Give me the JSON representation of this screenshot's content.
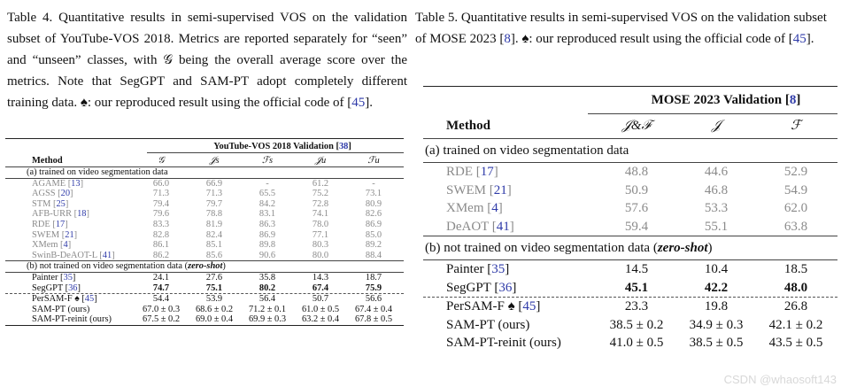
{
  "table4": {
    "caption": {
      "label": "Table 4.",
      "text_before_ref": " Quantitative results in semi-supervised VOS on the validation subset of YouTube-VOS 2018. Metrics are reported separately for “seen” and “unseen” classes, with 𝒢 being the overall average score over the metrics. Note that SegGPT and SAM-PT adopt completely different training data. ♠: our reproduced result using the official code of [",
      "ref": "45",
      "text_after_ref": "]."
    },
    "group_header": "YouTube-VOS 2018 Validation",
    "group_ref": "38",
    "columns": [
      "Method",
      "𝒢",
      "𝒥s",
      "ℱs",
      "𝒥u",
      "ℱu"
    ],
    "section_a": "(a) trained on video segmentation data",
    "section_b_prefix": "(b) not trained on video segmentation data (",
    "section_b_em": "zero-shot",
    "section_b_suffix": ")",
    "rows_a": [
      {
        "name": "AGAME",
        "ref": "13",
        "values": [
          "66.0",
          "66.9",
          "-",
          "61.2",
          "-"
        ]
      },
      {
        "name": "AGSS",
        "ref": "20",
        "values": [
          "71.3",
          "71.3",
          "65.5",
          "75.2",
          "73.1"
        ]
      },
      {
        "name": "STM",
        "ref": "25",
        "values": [
          "79.4",
          "79.7",
          "84.2",
          "72.8",
          "80.9"
        ]
      },
      {
        "name": "AFB-URR",
        "ref": "18",
        "values": [
          "79.6",
          "78.8",
          "83.1",
          "74.1",
          "82.6"
        ]
      },
      {
        "name": "RDE",
        "ref": "17",
        "values": [
          "83.3",
          "81.9",
          "86.3",
          "78.0",
          "86.9"
        ]
      },
      {
        "name": "SWEM",
        "ref": "21",
        "values": [
          "82.8",
          "82.4",
          "86.9",
          "77.1",
          "85.0"
        ]
      },
      {
        "name": "XMem",
        "ref": "4",
        "values": [
          "86.1",
          "85.1",
          "89.8",
          "80.3",
          "89.2"
        ]
      },
      {
        "name": "SwinB-DeAOT-L",
        "ref": "41",
        "values": [
          "86.2",
          "85.6",
          "90.6",
          "80.0",
          "88.4"
        ]
      }
    ],
    "rows_b": [
      {
        "name": "Painter",
        "ref": "35",
        "values": [
          "24.1",
          "27.6",
          "35.8",
          "14.3",
          "18.7"
        ],
        "bold": false
      },
      {
        "name": "SegGPT",
        "ref": "36",
        "values": [
          "74.7",
          "75.1",
          "80.2",
          "67.4",
          "75.9"
        ],
        "bold": true
      }
    ],
    "rows_c": [
      {
        "name": "PerSAM-F ♠",
        "ref": "45",
        "values": [
          "54.4",
          "53.9",
          "56.4",
          "50.7",
          "56.6"
        ]
      },
      {
        "name": "SAM-PT (ours)",
        "ref": "",
        "values": [
          "67.0 ± 0.3",
          "68.6 ± 0.2",
          "71.2 ± 0.1",
          "61.0 ± 0.5",
          "67.4 ± 0.4"
        ]
      },
      {
        "name": "SAM-PT-reinit (ours)",
        "ref": "",
        "values": [
          "67.5 ± 0.2",
          "69.0 ± 0.4",
          "69.9 ± 0.3",
          "63.2 ± 0.4",
          "67.8 ± 0.5"
        ]
      }
    ]
  },
  "table5": {
    "caption": {
      "label": "Table 5.",
      "text_before_ref": " Quantitative results in semi-supervised VOS on the validation subset of MOSE 2023 [",
      "ref1": "8",
      "text_mid": "]. ♠: our reproduced result using the official code of [",
      "ref2": "45",
      "text_after_ref": "]."
    },
    "group_header": "MOSE 2023 Validation",
    "group_ref": "8",
    "columns": [
      "Method",
      "𝒥&ℱ",
      "𝒥",
      "ℱ"
    ],
    "section_a": "(a) trained on video segmentation data",
    "section_b_prefix": "(b) not trained on video segmentation data (",
    "section_b_em": "zero-shot",
    "section_b_suffix": ")",
    "rows_a": [
      {
        "name": "RDE",
        "ref": "17",
        "values": [
          "48.8",
          "44.6",
          "52.9"
        ]
      },
      {
        "name": "SWEM",
        "ref": "21",
        "values": [
          "50.9",
          "46.8",
          "54.9"
        ]
      },
      {
        "name": "XMem",
        "ref": "4",
        "values": [
          "57.6",
          "53.3",
          "62.0"
        ]
      },
      {
        "name": "DeAOT",
        "ref": "41",
        "values": [
          "59.4",
          "55.1",
          "63.8"
        ]
      }
    ],
    "rows_b": [
      {
        "name": "Painter",
        "ref": "35",
        "values": [
          "14.5",
          "10.4",
          "18.5"
        ],
        "bold": false
      },
      {
        "name": "SegGPT",
        "ref": "36",
        "values": [
          "45.1",
          "42.2",
          "48.0"
        ],
        "bold": true
      }
    ],
    "rows_c": [
      {
        "name": "PerSAM-F ♠",
        "ref": "45",
        "values": [
          "23.3",
          "19.8",
          "26.8"
        ]
      },
      {
        "name": "SAM-PT (ours)",
        "ref": "",
        "values": [
          "38.5 ± 0.2",
          "34.9 ± 0.3",
          "42.1 ± 0.2"
        ]
      },
      {
        "name": "SAM-PT-reinit (ours)",
        "ref": "",
        "values": [
          "41.0 ± 0.5",
          "38.5 ± 0.5",
          "43.5 ± 0.5"
        ]
      }
    ]
  },
  "watermark": "CSDN @whaosoft143"
}
